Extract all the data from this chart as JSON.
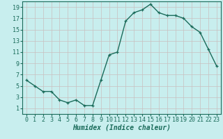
{
  "x": [
    0,
    1,
    2,
    3,
    4,
    5,
    6,
    7,
    8,
    9,
    10,
    11,
    12,
    13,
    14,
    15,
    16,
    17,
    18,
    19,
    20,
    21,
    22,
    23
  ],
  "y": [
    6,
    5,
    4,
    4,
    2.5,
    2,
    2.5,
    1.5,
    1.5,
    6,
    10.5,
    11,
    16.5,
    18,
    18.5,
    19.5,
    18,
    17.5,
    17.5,
    17,
    15.5,
    14.5,
    11.5,
    8.5
  ],
  "line_color": "#1a6b5a",
  "marker": "+",
  "marker_color": "#1a6b5a",
  "bg_color": "#c8eeee",
  "grid_color": "#c8c0c0",
  "xlabel": "Humidex (Indice chaleur)",
  "xlim": [
    -0.5,
    23.5
  ],
  "ylim": [
    0,
    20
  ],
  "yticks": [
    1,
    3,
    5,
    7,
    9,
    11,
    13,
    15,
    17,
    19
  ],
  "xticks": [
    0,
    1,
    2,
    3,
    4,
    5,
    6,
    7,
    8,
    9,
    10,
    11,
    12,
    13,
    14,
    15,
    16,
    17,
    18,
    19,
    20,
    21,
    22,
    23
  ],
  "tick_font_size": 6,
  "label_font_size": 7,
  "linewidth": 1.0,
  "markersize": 3.5,
  "markeredgewidth": 0.9
}
